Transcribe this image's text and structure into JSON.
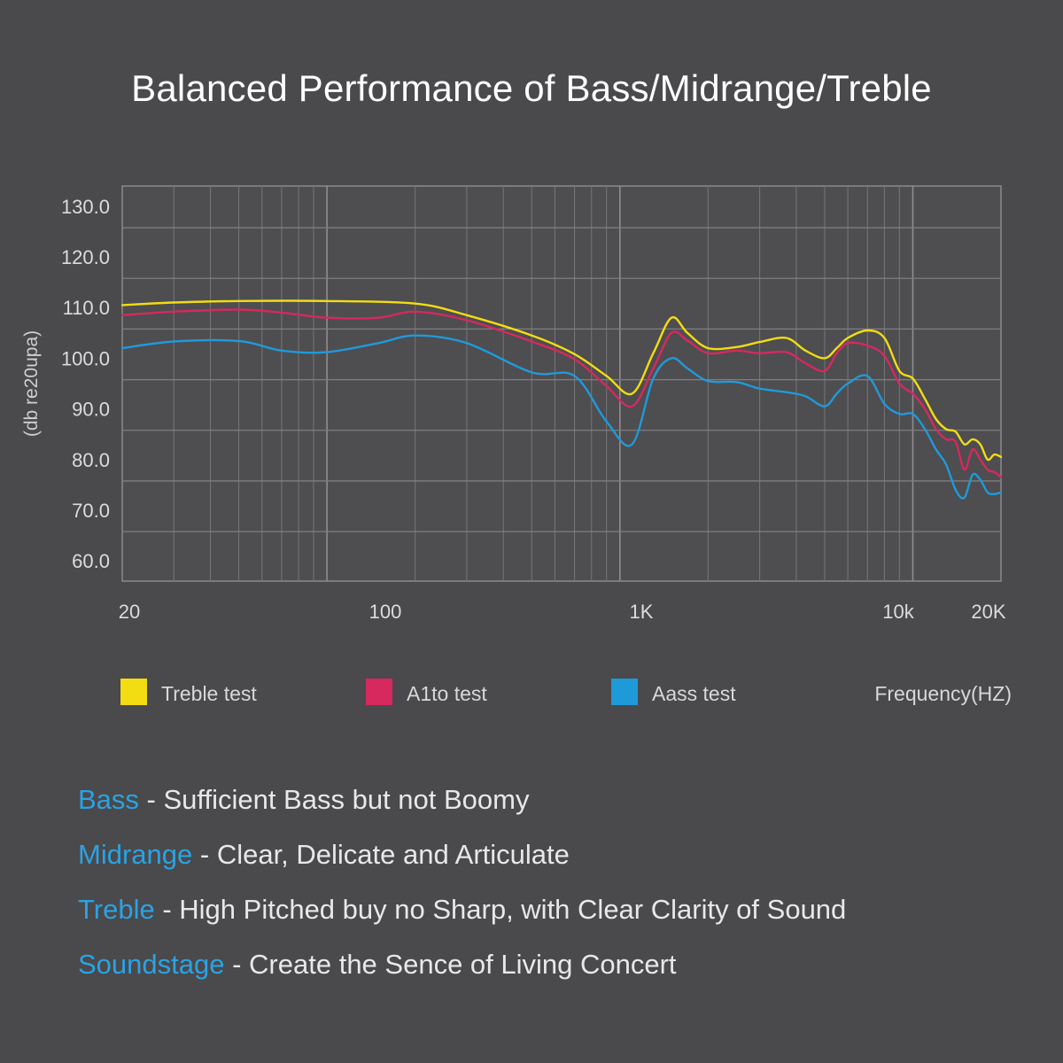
{
  "chart_data": {
    "type": "line",
    "title": "Balanced Performance of Bass/Midrange/Treble",
    "ylabel": "(db re20upa)",
    "xlabel": "Frequency(HZ)",
    "x_scale": "log",
    "xlim": [
      20,
      20000
    ],
    "ylim": [
      56,
      134
    ],
    "y_ticks": [
      {
        "value": 60,
        "label": "60.0"
      },
      {
        "value": 70,
        "label": "70.0"
      },
      {
        "value": 80,
        "label": "80.0"
      },
      {
        "value": 90,
        "label": "90.0"
      },
      {
        "value": 100,
        "label": "100.0"
      },
      {
        "value": 110,
        "label": "110.0"
      },
      {
        "value": 120,
        "label": "120.0"
      },
      {
        "value": 130,
        "label": "130.0"
      }
    ],
    "x_ticks": [
      {
        "value": 20,
        "label": "20"
      },
      {
        "value": 100,
        "label": "100"
      },
      {
        "value": 1000,
        "label": "1K"
      },
      {
        "value": 10000,
        "label": "10k"
      },
      {
        "value": 20000,
        "label": "20K"
      }
    ],
    "grid": true,
    "legend_position": "bottom",
    "series": [
      {
        "name": "Treble test",
        "color": "#f2dc12",
        "x": [
          20,
          30,
          50,
          100,
          200,
          300,
          500,
          700,
          900,
          1100,
          1300,
          1500,
          1700,
          2000,
          2500,
          3000,
          3700,
          4300,
          5000,
          5500,
          6000,
          7000,
          8000,
          9000,
          10000,
          11000,
          12000,
          13000,
          14000,
          15000,
          16000,
          17000,
          18000,
          19000,
          20000
        ],
        "y": [
          110.5,
          111,
          111.3,
          111.3,
          110.8,
          108.5,
          104.5,
          100.8,
          96.5,
          93,
          101,
          108,
          105,
          102,
          102.2,
          103.2,
          104,
          101.5,
          100,
          102,
          104,
          105.5,
          104,
          97.5,
          96,
          92,
          88,
          86,
          85.5,
          83,
          84,
          83,
          80,
          81,
          80.5
        ]
      },
      {
        "name": "A1to test",
        "color": "#d6295e",
        "x": [
          20,
          30,
          50,
          70,
          100,
          150,
          200,
          300,
          500,
          700,
          900,
          1100,
          1300,
          1500,
          1700,
          2000,
          2500,
          3000,
          3700,
          4300,
          5000,
          5500,
          6000,
          7000,
          8000,
          9000,
          10000,
          11000,
          12000,
          13000,
          14000,
          15000,
          16000,
          17000,
          18000,
          19000,
          20000
        ],
        "y": [
          108.5,
          109.2,
          109.6,
          109,
          108,
          108,
          109.2,
          107.5,
          103.3,
          99.8,
          94.5,
          90.5,
          98,
          105,
          103.5,
          101,
          101.5,
          101,
          101.2,
          99,
          97.5,
          101,
          103,
          102.5,
          100.5,
          95,
          93,
          90,
          86,
          84,
          83.5,
          78,
          82,
          80,
          78,
          77.5,
          76.5
        ]
      },
      {
        "name": "Aass test",
        "color": "#1f9ad9",
        "x": [
          20,
          30,
          50,
          70,
          100,
          150,
          200,
          300,
          500,
          700,
          900,
          1100,
          1300,
          1500,
          1700,
          2000,
          2500,
          3000,
          3700,
          4300,
          5000,
          5500,
          6000,
          7000,
          8000,
          9000,
          10000,
          11000,
          12000,
          13000,
          14000,
          15000,
          16000,
          17000,
          18000,
          19000,
          20000
        ],
        "y": [
          102,
          103.3,
          103.4,
          101.5,
          101.2,
          103,
          104.5,
          103,
          97.2,
          96.5,
          87.5,
          83,
          96,
          100,
          98,
          95.5,
          95.3,
          94,
          93.3,
          92.5,
          90.5,
          93,
          95,
          96.5,
          91,
          89,
          89,
          86,
          82,
          79,
          74,
          72.5,
          77,
          76,
          73.5,
          73.2,
          73.5
        ]
      }
    ]
  },
  "features": [
    {
      "name": "Bass",
      "sep": " - ",
      "text": " Sufficient Bass but not Boomy"
    },
    {
      "name": "Midrange",
      "sep": " - ",
      "text": "Clear, Delicate and Articulate"
    },
    {
      "name": "Treble",
      "sep": " - ",
      "text": "High Pitched buy no Sharp, with Clear Clarity of Sound"
    },
    {
      "name": "Soundstage",
      "sep": " - ",
      "text": "Create the Sence of Living Concert"
    }
  ]
}
